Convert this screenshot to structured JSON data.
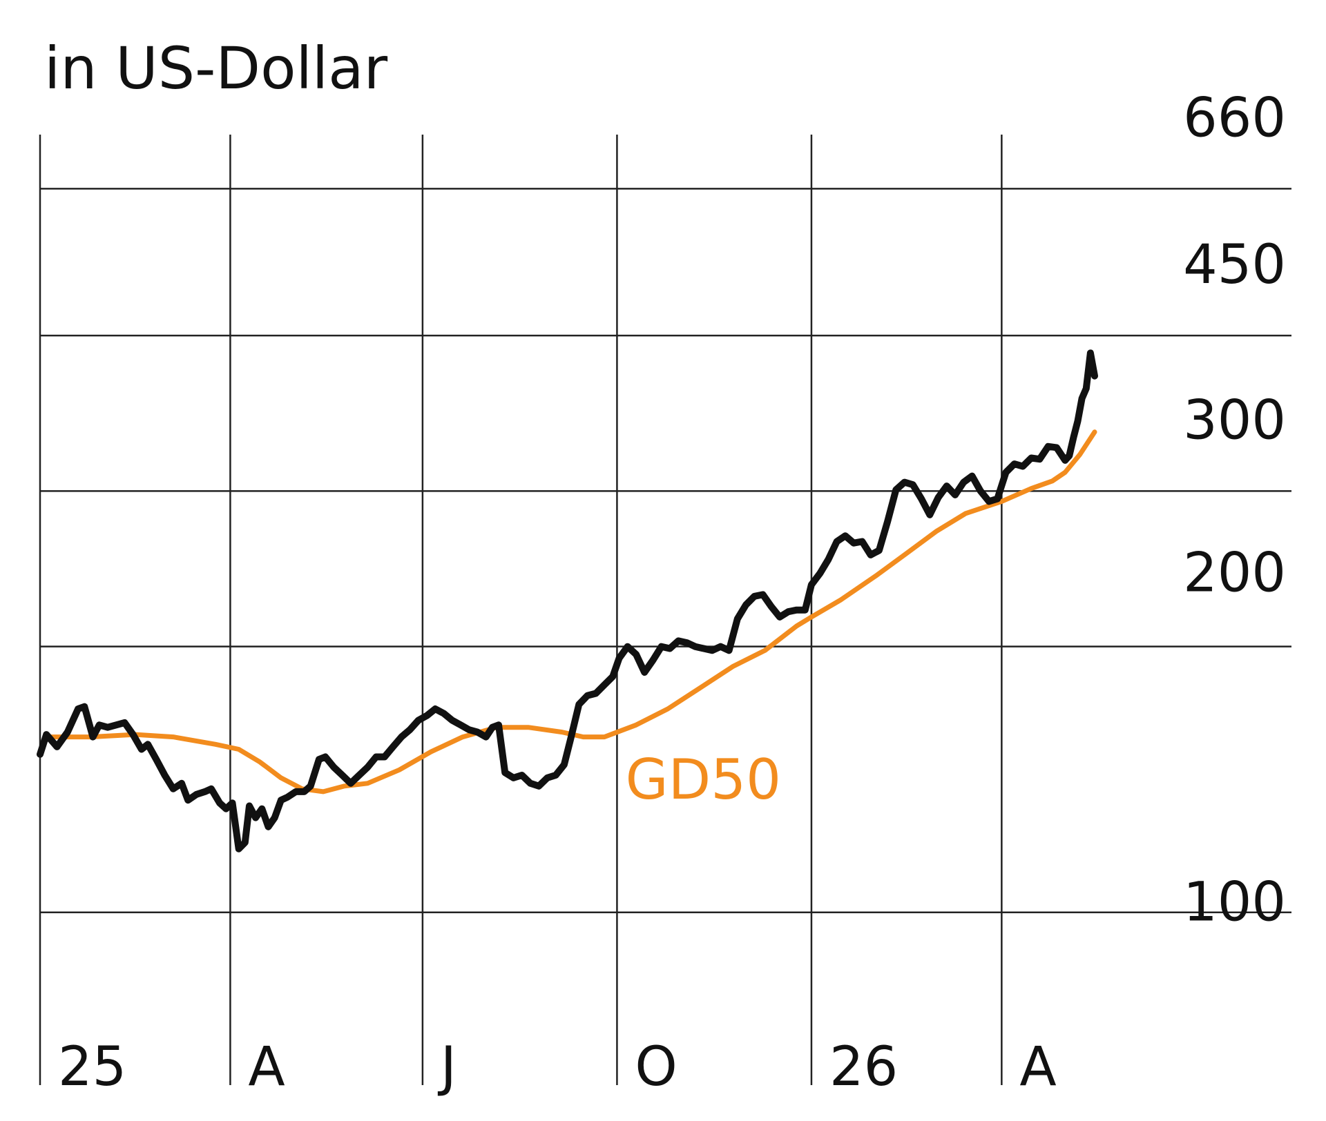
{
  "chart_data": {
    "type": "line",
    "title": "in US-Dollar",
    "y_scale": "log",
    "ylim": [
      82,
      760
    ],
    "y_ticks": [
      100,
      200,
      300,
      450,
      660
    ],
    "x_range": [
      "2025-01-01",
      "2026-05-15"
    ],
    "x_ticks": [
      {
        "label": "25",
        "date": "2025-01-01"
      },
      {
        "label": "A",
        "date": "2025-04-01"
      },
      {
        "label": "J",
        "date": "2025-07-01"
      },
      {
        "label": "O",
        "date": "2025-10-01"
      },
      {
        "label": "26",
        "date": "2026-01-01"
      },
      {
        "label": "A",
        "date": "2026-04-01"
      }
    ],
    "grid": true,
    "series": [
      {
        "key": "price",
        "color": "#111111",
        "points": [
          [
            "2025-01-01",
            151
          ],
          [
            "2025-01-04",
            159
          ],
          [
            "2025-01-09",
            154
          ],
          [
            "2025-01-14",
            160
          ],
          [
            "2025-01-19",
            170
          ],
          [
            "2025-01-22",
            171
          ],
          [
            "2025-01-26",
            158
          ],
          [
            "2025-01-29",
            163
          ],
          [
            "2025-02-02",
            162
          ],
          [
            "2025-02-06",
            163
          ],
          [
            "2025-02-10",
            164
          ],
          [
            "2025-02-14",
            159
          ],
          [
            "2025-02-18",
            153
          ],
          [
            "2025-02-21",
            155
          ],
          [
            "2025-02-25",
            149
          ],
          [
            "2025-03-01",
            143
          ],
          [
            "2025-03-05",
            138
          ],
          [
            "2025-03-09",
            140
          ],
          [
            "2025-03-12",
            134
          ],
          [
            "2025-03-16",
            136
          ],
          [
            "2025-03-20",
            137
          ],
          [
            "2025-03-23",
            138
          ],
          [
            "2025-03-27",
            133
          ],
          [
            "2025-03-30",
            131
          ],
          [
            "2025-04-02",
            133
          ],
          [
            "2025-04-05",
            118
          ],
          [
            "2025-04-08",
            120
          ],
          [
            "2025-04-10",
            132
          ],
          [
            "2025-04-13",
            128
          ],
          [
            "2025-04-16",
            131
          ],
          [
            "2025-04-19",
            125
          ],
          [
            "2025-04-22",
            128
          ],
          [
            "2025-04-25",
            134
          ],
          [
            "2025-04-28",
            135
          ],
          [
            "2025-05-02",
            137
          ],
          [
            "2025-05-06",
            137
          ],
          [
            "2025-05-09",
            139
          ],
          [
            "2025-05-13",
            149
          ],
          [
            "2025-05-16",
            150
          ],
          [
            "2025-05-20",
            146
          ],
          [
            "2025-05-24",
            143
          ],
          [
            "2025-05-28",
            140
          ],
          [
            "2025-06-01",
            143
          ],
          [
            "2025-06-05",
            146
          ],
          [
            "2025-06-09",
            150
          ],
          [
            "2025-06-13",
            150
          ],
          [
            "2025-06-17",
            154
          ],
          [
            "2025-06-21",
            158
          ],
          [
            "2025-06-25",
            161
          ],
          [
            "2025-06-29",
            165
          ],
          [
            "2025-07-03",
            167
          ],
          [
            "2025-07-07",
            170
          ],
          [
            "2025-07-11",
            168
          ],
          [
            "2025-07-15",
            165
          ],
          [
            "2025-07-19",
            163
          ],
          [
            "2025-07-23",
            161
          ],
          [
            "2025-07-27",
            160
          ],
          [
            "2025-07-31",
            158
          ],
          [
            "2025-08-03",
            162
          ],
          [
            "2025-08-06",
            163
          ],
          [
            "2025-08-09",
            144
          ],
          [
            "2025-08-13",
            142
          ],
          [
            "2025-08-17",
            143
          ],
          [
            "2025-08-21",
            140
          ],
          [
            "2025-08-25",
            139
          ],
          [
            "2025-08-29",
            142
          ],
          [
            "2025-09-02",
            143
          ],
          [
            "2025-09-06",
            147
          ],
          [
            "2025-09-09",
            157
          ],
          [
            "2025-09-13",
            172
          ],
          [
            "2025-09-17",
            176
          ],
          [
            "2025-09-21",
            177
          ],
          [
            "2025-09-25",
            181
          ],
          [
            "2025-09-29",
            185
          ],
          [
            "2025-10-02",
            194
          ],
          [
            "2025-10-06",
            200
          ],
          [
            "2025-10-10",
            196
          ],
          [
            "2025-10-14",
            187
          ],
          [
            "2025-10-18",
            193
          ],
          [
            "2025-10-22",
            200
          ],
          [
            "2025-10-26",
            199
          ],
          [
            "2025-10-30",
            203
          ],
          [
            "2025-11-03",
            202
          ],
          [
            "2025-11-07",
            200
          ],
          [
            "2025-11-11",
            199
          ],
          [
            "2025-11-15",
            198
          ],
          [
            "2025-11-19",
            200
          ],
          [
            "2025-11-23",
            198
          ],
          [
            "2025-11-27",
            215
          ],
          [
            "2025-12-01",
            223
          ],
          [
            "2025-12-05",
            228
          ],
          [
            "2025-12-09",
            229
          ],
          [
            "2025-12-13",
            222
          ],
          [
            "2025-12-17",
            216
          ],
          [
            "2025-12-21",
            219
          ],
          [
            "2025-12-25",
            220
          ],
          [
            "2025-12-29",
            220
          ],
          [
            "2026-01-01",
            235
          ],
          [
            "2026-01-05",
            242
          ],
          [
            "2026-01-09",
            251
          ],
          [
            "2026-01-13",
            263
          ],
          [
            "2026-01-17",
            267
          ],
          [
            "2026-01-21",
            262
          ],
          [
            "2026-01-25",
            263
          ],
          [
            "2026-01-29",
            254
          ],
          [
            "2026-02-02",
            257
          ],
          [
            "2026-02-06",
            277
          ],
          [
            "2026-02-10",
            301
          ],
          [
            "2026-02-14",
            307
          ],
          [
            "2026-02-18",
            305
          ],
          [
            "2026-02-22",
            294
          ],
          [
            "2026-02-26",
            282
          ],
          [
            "2026-03-02",
            295
          ],
          [
            "2026-03-06",
            304
          ],
          [
            "2026-03-10",
            297
          ],
          [
            "2026-03-14",
            307
          ],
          [
            "2026-03-18",
            312
          ],
          [
            "2026-03-22",
            300
          ],
          [
            "2026-03-26",
            292
          ],
          [
            "2026-03-30",
            294
          ],
          [
            "2026-04-03",
            315
          ],
          [
            "2026-04-07",
            322
          ],
          [
            "2026-04-11",
            320
          ],
          [
            "2026-04-15",
            327
          ],
          [
            "2026-04-19",
            326
          ],
          [
            "2026-04-23",
            337
          ],
          [
            "2026-04-27",
            336
          ],
          [
            "2026-05-01",
            325
          ],
          [
            "2026-05-03",
            329
          ],
          [
            "2026-05-05",
            345
          ],
          [
            "2026-05-07",
            360
          ],
          [
            "2026-05-09",
            382
          ],
          [
            "2026-05-11",
            392
          ],
          [
            "2026-05-13",
            430
          ],
          [
            "2026-05-15",
            405
          ]
        ]
      },
      {
        "key": "gd50",
        "name": "GD50",
        "color": "#F28C1E",
        "points": [
          [
            "2025-01-05",
            158
          ],
          [
            "2025-01-25",
            158
          ],
          [
            "2025-02-15",
            159
          ],
          [
            "2025-03-05",
            158
          ],
          [
            "2025-03-25",
            155
          ],
          [
            "2025-04-05",
            153
          ],
          [
            "2025-04-15",
            148
          ],
          [
            "2025-04-25",
            142
          ],
          [
            "2025-05-05",
            138
          ],
          [
            "2025-05-15",
            137
          ],
          [
            "2025-05-25",
            139
          ],
          [
            "2025-06-05",
            140
          ],
          [
            "2025-06-20",
            145
          ],
          [
            "2025-07-05",
            152
          ],
          [
            "2025-07-20",
            158
          ],
          [
            "2025-08-05",
            162
          ],
          [
            "2025-08-20",
            162
          ],
          [
            "2025-09-05",
            160
          ],
          [
            "2025-09-15",
            158
          ],
          [
            "2025-09-25",
            158
          ],
          [
            "2025-10-10",
            163
          ],
          [
            "2025-10-25",
            170
          ],
          [
            "2025-11-10",
            180
          ],
          [
            "2025-11-25",
            190
          ],
          [
            "2025-12-10",
            198
          ],
          [
            "2025-12-25",
            211
          ],
          [
            "2026-01-01",
            216
          ],
          [
            "2026-01-15",
            226
          ],
          [
            "2026-02-01",
            241
          ],
          [
            "2026-02-15",
            255
          ],
          [
            "2026-03-01",
            270
          ],
          [
            "2026-03-15",
            283
          ],
          [
            "2026-04-01",
            292
          ],
          [
            "2026-04-15",
            302
          ],
          [
            "2026-04-25",
            308
          ],
          [
            "2026-05-01",
            315
          ],
          [
            "2026-05-08",
            330
          ],
          [
            "2026-05-15",
            350
          ]
        ]
      }
    ]
  }
}
